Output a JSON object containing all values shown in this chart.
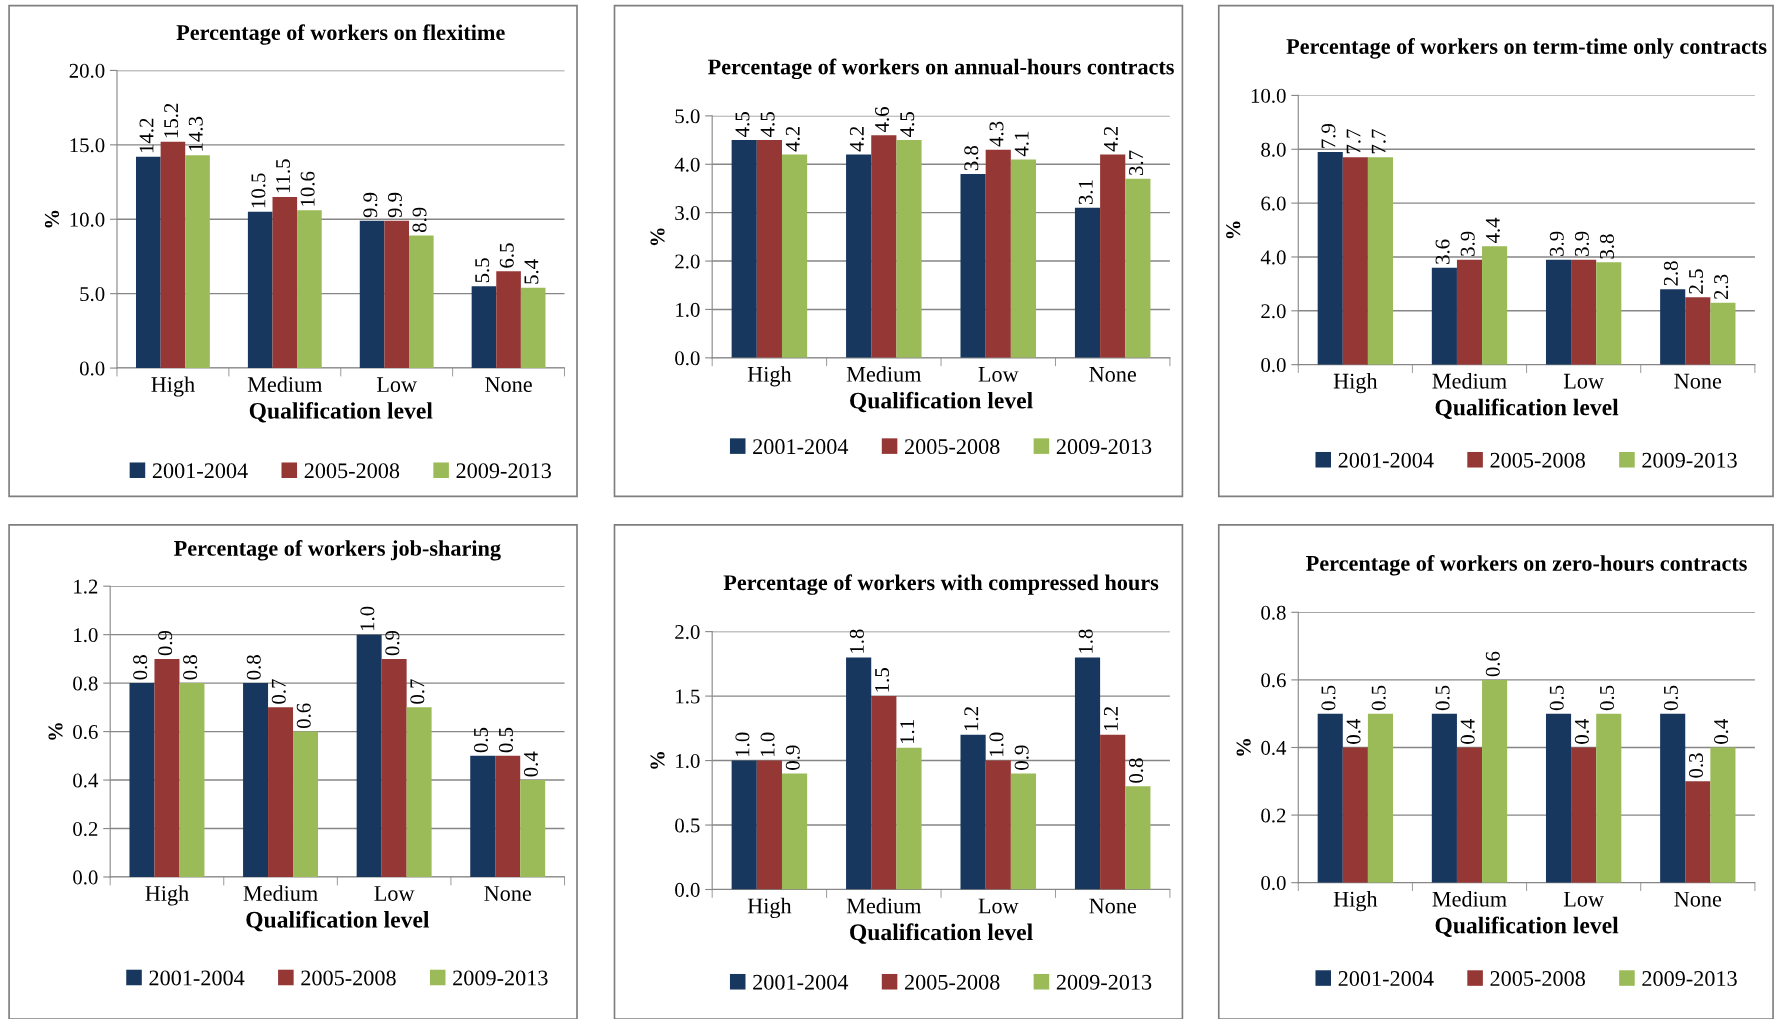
{
  "chart_data": [
    {
      "type": "bar",
      "title": "Percentage of workers on flexitime",
      "xlabel": "Qualification level",
      "ylabel": "%",
      "categories": [
        "High",
        "Medium",
        "Low",
        "None"
      ],
      "series": [
        {
          "name": "2001-2004",
          "color": "#17375e",
          "values": [
            14.2,
            10.5,
            9.9,
            5.5
          ],
          "value_labels": [
            "14.2",
            "10.5",
            "9.9",
            "5.5"
          ]
        },
        {
          "name": "2005-2008",
          "color": "#953735",
          "values": [
            15.2,
            11.5,
            9.9,
            6.5
          ],
          "value_labels": [
            "15.2",
            "11.5",
            "9.9",
            "6.5"
          ]
        },
        {
          "name": "2009-2013",
          "color": "#9bbb59",
          "values": [
            14.3,
            10.6,
            8.9,
            5.4
          ],
          "value_labels": [
            "14.3",
            "10.6",
            "8.9",
            "5.4"
          ]
        }
      ],
      "ylim": [
        0,
        20
      ],
      "yticks": [
        {
          "value": 0,
          "label": "0.0"
        },
        {
          "value": 5,
          "label": "5.0"
        },
        {
          "value": 10,
          "label": "10.0"
        },
        {
          "value": 15,
          "label": "15.0"
        },
        {
          "value": 20,
          "label": "20.0"
        }
      ],
      "grid": "y",
      "legend": "bottom"
    },
    {
      "type": "bar",
      "title": "Percentage of workers on annual-hours contracts",
      "xlabel": "Qualification level",
      "ylabel": "%",
      "categories": [
        "High",
        "Medium",
        "Low",
        "None"
      ],
      "series": [
        {
          "name": "2001-2004",
          "color": "#17375e",
          "values": [
            4.5,
            4.2,
            3.8,
            3.1
          ],
          "value_labels": [
            "4.5",
            "4.2",
            "3.8",
            "3.1"
          ]
        },
        {
          "name": "2005-2008",
          "color": "#953735",
          "values": [
            4.5,
            4.6,
            4.3,
            4.2
          ],
          "value_labels": [
            "4.5",
            "4.6",
            "4.3",
            "4.2"
          ]
        },
        {
          "name": "2009-2013",
          "color": "#9bbb59",
          "values": [
            4.2,
            4.5,
            4.1,
            3.7
          ],
          "value_labels": [
            "4.2",
            "4.5",
            "4.1",
            "3.7"
          ]
        }
      ],
      "ylim": [
        0,
        5
      ],
      "yticks": [
        {
          "value": 0,
          "label": "0.0"
        },
        {
          "value": 1,
          "label": "1.0"
        },
        {
          "value": 2,
          "label": "2.0"
        },
        {
          "value": 3,
          "label": "3.0"
        },
        {
          "value": 4,
          "label": "4.0"
        },
        {
          "value": 5,
          "label": "5.0"
        }
      ],
      "grid": "y",
      "legend": "bottom"
    },
    {
      "type": "bar",
      "title": "Percentage of workers on term-time only contracts",
      "xlabel": "Qualification level",
      "ylabel": "%",
      "categories": [
        "High",
        "Medium",
        "Low",
        "None"
      ],
      "series": [
        {
          "name": "2001-2004",
          "color": "#17375e",
          "values": [
            7.9,
            3.6,
            3.9,
            2.8
          ],
          "value_labels": [
            "7.9",
            "3.6",
            "3.9",
            "2.8"
          ]
        },
        {
          "name": "2005-2008",
          "color": "#953735",
          "values": [
            7.7,
            3.9,
            3.9,
            2.5
          ],
          "value_labels": [
            "7.7",
            "3.9",
            "3.9",
            "2.5"
          ]
        },
        {
          "name": "2009-2013",
          "color": "#9bbb59",
          "values": [
            7.7,
            4.4,
            3.8,
            2.3
          ],
          "value_labels": [
            "7.7",
            "4.4",
            "3.8",
            "2.3"
          ]
        }
      ],
      "ylim": [
        0,
        10
      ],
      "yticks": [
        {
          "value": 0,
          "label": "0.0"
        },
        {
          "value": 2,
          "label": "2.0"
        },
        {
          "value": 4,
          "label": "4.0"
        },
        {
          "value": 6,
          "label": "6.0"
        },
        {
          "value": 8,
          "label": "8.0"
        },
        {
          "value": 10,
          "label": "10.0"
        }
      ],
      "grid": "y",
      "legend": "bottom"
    },
    {
      "type": "bar",
      "title": "Percentage of workers job-sharing",
      "xlabel": "Qualification level",
      "ylabel": "%",
      "categories": [
        "High",
        "Medium",
        "Low",
        "None"
      ],
      "series": [
        {
          "name": "2001-2004",
          "color": "#17375e",
          "values": [
            0.8,
            0.8,
            1,
            0.5
          ],
          "value_labels": [
            "0.8",
            "0.8",
            "1.0",
            "0.5"
          ]
        },
        {
          "name": "2005-2008",
          "color": "#953735",
          "values": [
            0.9,
            0.7,
            0.9,
            0.5
          ],
          "value_labels": [
            "0.9",
            "0.7",
            "0.9",
            "0.5"
          ]
        },
        {
          "name": "2009-2013",
          "color": "#9bbb59",
          "values": [
            0.8,
            0.6,
            0.7,
            0.4
          ],
          "value_labels": [
            "0.8",
            "0.6",
            "0.7",
            "0.4"
          ]
        }
      ],
      "ylim": [
        0,
        1.2
      ],
      "yticks": [
        {
          "value": 0,
          "label": "0.0"
        },
        {
          "value": 0.2,
          "label": "0.2"
        },
        {
          "value": 0.4,
          "label": "0.4"
        },
        {
          "value": 0.6,
          "label": "0.6"
        },
        {
          "value": 0.8,
          "label": "0.8"
        },
        {
          "value": 1.0,
          "label": "1.0"
        },
        {
          "value": 1.2,
          "label": "1.2"
        }
      ],
      "grid": "y",
      "legend": "bottom"
    },
    {
      "type": "bar",
      "title": "Percentage of workers with compressed hours",
      "xlabel": "Qualification level",
      "ylabel": "%",
      "categories": [
        "High",
        "Medium",
        "Low",
        "None"
      ],
      "series": [
        {
          "name": "2001-2004",
          "color": "#17375e",
          "values": [
            1,
            1.8,
            1.2,
            1.8
          ],
          "value_labels": [
            "1.0",
            "1.8",
            "1.2",
            "1.8"
          ]
        },
        {
          "name": "2005-2008",
          "color": "#953735",
          "values": [
            1,
            1.5,
            1,
            1.2
          ],
          "value_labels": [
            "1.0",
            "1.5",
            "1.0",
            "1.2"
          ]
        },
        {
          "name": "2009-2013",
          "color": "#9bbb59",
          "values": [
            0.9,
            1.1,
            0.9,
            0.8
          ],
          "value_labels": [
            "0.9",
            "1.1",
            "0.9",
            "0.8"
          ]
        }
      ],
      "ylim": [
        0,
        2
      ],
      "yticks": [
        {
          "value": 0,
          "label": "0.0"
        },
        {
          "value": 0.5,
          "label": "0.5"
        },
        {
          "value": 1.0,
          "label": "1.0"
        },
        {
          "value": 1.5,
          "label": "1.5"
        },
        {
          "value": 2.0,
          "label": "2.0"
        }
      ],
      "grid": "y",
      "legend": "bottom"
    },
    {
      "type": "bar",
      "title": "Percentage of workers on zero-hours contracts",
      "xlabel": "Qualification level",
      "ylabel": "%",
      "categories": [
        "High",
        "Medium",
        "Low",
        "None"
      ],
      "series": [
        {
          "name": "2001-2004",
          "color": "#17375e",
          "values": [
            0.5,
            0.5,
            0.5,
            0.5
          ],
          "value_labels": [
            "0.5",
            "0.5",
            "0.5",
            "0.5"
          ]
        },
        {
          "name": "2005-2008",
          "color": "#953735",
          "values": [
            0.4,
            0.4,
            0.4,
            0.3
          ],
          "value_labels": [
            "0.4",
            "0.4",
            "0.4",
            "0.3"
          ]
        },
        {
          "name": "2009-2013",
          "color": "#9bbb59",
          "values": [
            0.5,
            0.6,
            0.5,
            0.4
          ],
          "value_labels": [
            "0.5",
            "0.6",
            "0.5",
            "0.4"
          ]
        }
      ],
      "ylim": [
        0,
        0.8
      ],
      "yticks": [
        {
          "value": 0,
          "label": "0.0"
        },
        {
          "value": 0.2,
          "label": "0.2"
        },
        {
          "value": 0.4,
          "label": "0.4"
        },
        {
          "value": 0.6,
          "label": "0.6"
        },
        {
          "value": 0.8,
          "label": "0.8"
        }
      ],
      "grid": "y",
      "legend": "bottom"
    }
  ]
}
